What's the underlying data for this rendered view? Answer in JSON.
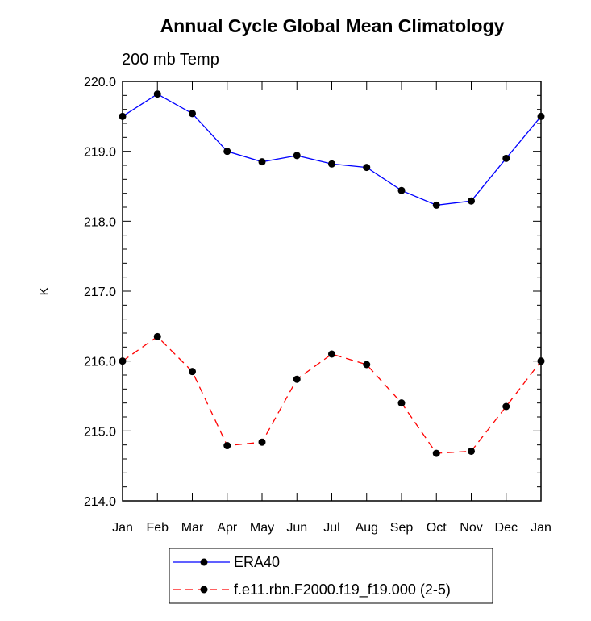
{
  "chart_data": {
    "type": "line",
    "title": "Annual Cycle Global Mean Climatology",
    "subtitle": "200 mb Temp",
    "xlabel": "",
    "ylabel": "K",
    "categories": [
      "Jan",
      "Feb",
      "Mar",
      "Apr",
      "May",
      "Jun",
      "Jul",
      "Aug",
      "Sep",
      "Oct",
      "Nov",
      "Dec",
      "Jan"
    ],
    "ylim": [
      214.0,
      220.0
    ],
    "yticks": [
      "214.0",
      "215.0",
      "216.0",
      "217.0",
      "218.0",
      "219.0",
      "220.0"
    ],
    "grid": false,
    "legend_position": "bottom",
    "series": [
      {
        "name": "ERA40",
        "color": "#0000ff",
        "line_style": "solid",
        "values": [
          219.5,
          219.82,
          219.54,
          219.0,
          218.85,
          218.94,
          218.82,
          218.77,
          218.44,
          218.23,
          218.29,
          218.9,
          219.5
        ]
      },
      {
        "name": "f.e11.rbn.F2000.f19_f19.000 (2-5)",
        "color": "#ff0000",
        "line_style": "dashed",
        "values": [
          216.0,
          216.35,
          215.85,
          214.79,
          214.84,
          215.74,
          216.1,
          215.95,
          215.4,
          214.68,
          214.71,
          215.35,
          216.0
        ]
      }
    ]
  }
}
